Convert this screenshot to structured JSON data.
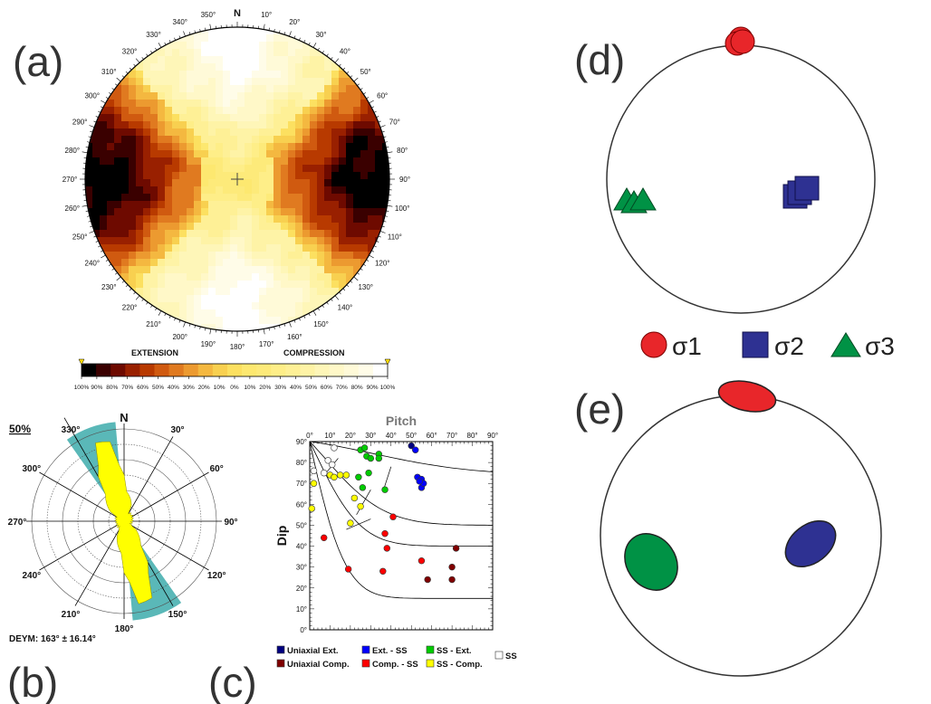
{
  "panels": {
    "a": {
      "letter": "(a)",
      "north": "N",
      "azimuth_labels": [
        "350°",
        "10°",
        "20°",
        "30°",
        "40°",
        "50°",
        "60°",
        "70°",
        "80°",
        "90°",
        "100°",
        "110°",
        "120°",
        "130°",
        "140°",
        "150°",
        "160°",
        "170°",
        "180°",
        "190°",
        "200°",
        "210°",
        "220°",
        "230°",
        "240°",
        "250°",
        "260°",
        "270°",
        "280°",
        "290°",
        "300°",
        "310°",
        "320°",
        "330°",
        "340°"
      ],
      "colorbar": {
        "left_label": "EXTENSION",
        "right_label": "COMPRESSION",
        "ticks": [
          "100%",
          "90%",
          "80%",
          "70%",
          "60%",
          "50%",
          "40%",
          "30%",
          "20%",
          "10%",
          "0%",
          "10%",
          "20%",
          "30%",
          "40%",
          "50%",
          "60%",
          "70%",
          "80%",
          "90%",
          "100%"
        ],
        "colors": [
          "#000000",
          "#3a0000",
          "#6e0a00",
          "#992000",
          "#b83a00",
          "#d05a10",
          "#e07a20",
          "#ec9a30",
          "#f4b840",
          "#f8d050",
          "#fce060",
          "#fde870",
          "#fdea7a",
          "#feee88",
          "#fef096",
          "#fef3a6",
          "#fef6b8",
          "#fff8c8",
          "#fffad8",
          "#fffce8",
          "#ffffff"
        ]
      }
    },
    "b": {
      "letter": "(b)",
      "percent_label": "50%",
      "north": "N",
      "angle_labels": [
        "30°",
        "60°",
        "90°",
        "120°",
        "150°",
        "180°",
        "210°",
        "240°",
        "270°",
        "300°",
        "330°"
      ],
      "result": "DEYM: 163° ± 16.14°",
      "rose_color": "#ffff00",
      "sector_color": "#5ab8b8"
    },
    "c": {
      "letter": "(c)",
      "legend": [
        {
          "label": "Uniaxial Ext.",
          "color": "#000080"
        },
        {
          "label": "Ext. - SS",
          "color": "#0000ff"
        },
        {
          "label": "SS - Ext.",
          "color": "#00cc00"
        },
        {
          "label": "SS",
          "color": "#ffffff"
        },
        {
          "label": "Uniaxial Comp.",
          "color": "#800000"
        },
        {
          "label": "Comp. - SS",
          "color": "#ff0000"
        },
        {
          "label": "SS - Comp.",
          "color": "#ffff00"
        }
      ]
    },
    "d": {
      "letter": "(d)",
      "legend": [
        {
          "label": "σ1",
          "color": "#e8262a",
          "shape": "circle"
        },
        {
          "label": "σ2",
          "color": "#2e3192",
          "shape": "square"
        },
        {
          "label": "σ3",
          "color": "#009245",
          "shape": "triangle"
        }
      ]
    },
    "e": {
      "letter": "(e)",
      "colors": {
        "sigma1": "#e8262a",
        "sigma2": "#2e3192",
        "sigma3": "#009245"
      }
    }
  },
  "chart_data": {
    "type": "scatter",
    "title": "Pitch",
    "xlabel": "Pitch",
    "ylabel": "Dip",
    "x_ticks": [
      "0°",
      "10°",
      "20°",
      "30°",
      "40°",
      "50°",
      "60°",
      "70°",
      "80°",
      "90°"
    ],
    "y_ticks": [
      "0°",
      "10°",
      "20°",
      "30°",
      "40°",
      "50°",
      "60°",
      "70°",
      "80°",
      "90°"
    ],
    "xlim": [
      0,
      90
    ],
    "ylim": [
      0,
      90
    ],
    "series": [
      {
        "name": "Uniaxial Ext.",
        "color": "#000080",
        "points": [
          [
            50,
            88
          ]
        ]
      },
      {
        "name": "Ext. - SS",
        "color": "#0000ff",
        "points": [
          [
            52,
            86
          ],
          [
            53,
            73
          ],
          [
            55,
            72
          ],
          [
            55,
            68
          ],
          [
            56,
            70
          ],
          [
            54,
            71
          ]
        ]
      },
      {
        "name": "SS - Ext.",
        "color": "#00cc00",
        "points": [
          [
            25,
            86
          ],
          [
            27,
            87
          ],
          [
            28,
            83
          ],
          [
            30,
            82
          ],
          [
            34,
            84
          ],
          [
            34,
            82
          ],
          [
            24,
            73
          ],
          [
            26,
            68
          ],
          [
            29,
            75
          ],
          [
            37,
            67
          ]
        ]
      },
      {
        "name": "SS",
        "color": "#ffffff",
        "points": [
          [
            12,
            87
          ],
          [
            9,
            81
          ],
          [
            11,
            79
          ],
          [
            2,
            76
          ],
          [
            7,
            75
          ]
        ]
      },
      {
        "name": "Uniaxial Comp.",
        "color": "#800000",
        "points": [
          [
            72,
            39
          ],
          [
            70,
            30
          ],
          [
            58,
            24
          ],
          [
            70,
            24
          ]
        ]
      },
      {
        "name": "Comp. - SS",
        "color": "#ff0000",
        "points": [
          [
            41,
            54
          ],
          [
            37,
            46
          ],
          [
            38,
            39
          ],
          [
            7,
            44
          ],
          [
            19,
            29
          ],
          [
            36,
            28
          ],
          [
            55,
            33
          ]
        ]
      },
      {
        "name": "SS - Comp.",
        "color": "#ffff00",
        "points": [
          [
            10,
            74
          ],
          [
            12,
            73
          ],
          [
            15,
            74
          ],
          [
            18,
            74
          ],
          [
            2,
            70
          ],
          [
            1,
            58
          ],
          [
            22,
            63
          ],
          [
            25,
            59
          ],
          [
            20,
            51
          ]
        ]
      }
    ]
  }
}
